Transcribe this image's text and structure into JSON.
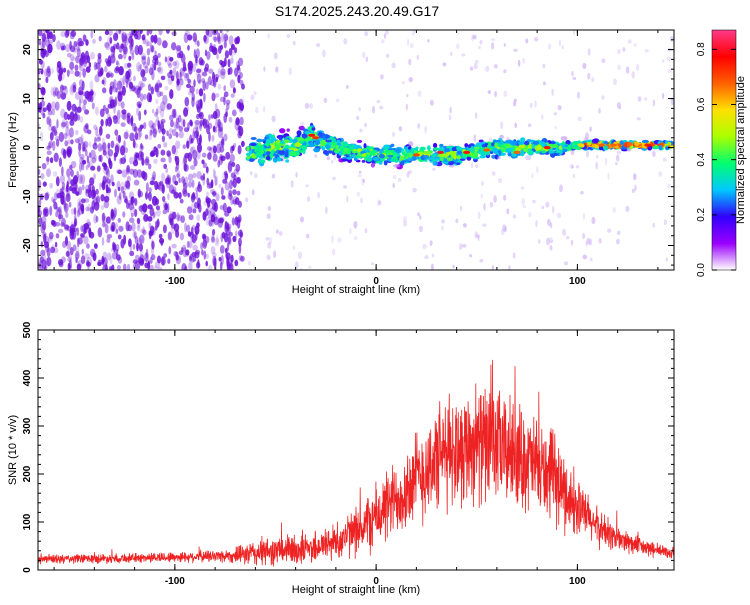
{
  "title": "S174.2025.243.20.49.G17",
  "colors": {
    "snr_line": "#ee2222",
    "scatter_violet": "#6a10d8",
    "axis": "#000000",
    "background": "#ffffff"
  },
  "chart_data": [
    {
      "type": "heatmap",
      "name": "spectrogram",
      "xlabel": "Height of straight line (km)",
      "ylabel": "Frequency (Hz)",
      "xlim": [
        -168,
        148
      ],
      "ylim": [
        -25,
        24
      ],
      "xticks": [
        -100,
        0,
        100
      ],
      "yticks": [
        -20,
        -10,
        0,
        10,
        20
      ],
      "xtick_labels": [
        "-100",
        "0",
        "100"
      ],
      "ytick_labels": [
        "-20",
        "-10",
        "0",
        "10",
        "20"
      ],
      "noise_region_x": [
        -168,
        -66
      ],
      "signal_band": {
        "x": [
          -64,
          -50,
          -40,
          -32,
          -25,
          -15,
          0,
          20,
          40,
          60,
          80,
          95,
          100,
          148
        ],
        "center_hz": [
          -1,
          0,
          0,
          2.5,
          0.5,
          -0.5,
          -1.5,
          -1.5,
          -1.5,
          0,
          0,
          0,
          0.5,
          0.5
        ],
        "half_width_hz": [
          3,
          3.5,
          3,
          2.5,
          2.5,
          2.2,
          2.2,
          2,
          2,
          2,
          1.8,
          1.5,
          1,
          0.8
        ]
      },
      "colorbar": {
        "label": "Normalized spectral amplitude",
        "range": [
          0,
          0.87
        ],
        "ticks": [
          0.0,
          0.2,
          0.4,
          0.6,
          0.8
        ],
        "tick_labels": [
          "0.0",
          "0.2",
          "0.4",
          "0.6",
          "0.8"
        ],
        "colormap": [
          "#ffffff",
          "#9a00ff",
          "#3000ff",
          "#00c8ff",
          "#00ff70",
          "#aaff00",
          "#ffe000",
          "#ff6000",
          "#ff0000",
          "#ff3a8a"
        ]
      }
    },
    {
      "type": "line",
      "name": "snr",
      "xlabel": "Height of straight line (km)",
      "ylabel": "SNR (10 * v/v)",
      "xlim": [
        -168,
        148
      ],
      "ylim": [
        0,
        500
      ],
      "xticks": [
        -100,
        0,
        100
      ],
      "yticks": [
        0,
        100,
        200,
        300,
        400,
        500
      ],
      "xtick_labels": [
        "-100",
        "0",
        "100"
      ],
      "ytick_labels": [
        "0",
        "100",
        "200",
        "300",
        "400",
        "500"
      ],
      "envelope": {
        "x": [
          -168,
          -120,
          -90,
          -70,
          -60,
          -50,
          -40,
          -30,
          -20,
          -10,
          0,
          10,
          20,
          30,
          40,
          50,
          60,
          70,
          80,
          90,
          100,
          110,
          120,
          130,
          140,
          148
        ],
        "mean": [
          22,
          25,
          28,
          30,
          35,
          40,
          42,
          48,
          60,
          80,
          110,
          150,
          190,
          230,
          255,
          265,
          255,
          240,
          215,
          180,
          130,
          90,
          65,
          50,
          40,
          35
        ],
        "spread": [
          10,
          10,
          12,
          15,
          30,
          30,
          35,
          35,
          40,
          50,
          70,
          80,
          100,
          110,
          120,
          120,
          120,
          110,
          100,
          90,
          60,
          40,
          30,
          20,
          15,
          12
        ]
      }
    }
  ]
}
